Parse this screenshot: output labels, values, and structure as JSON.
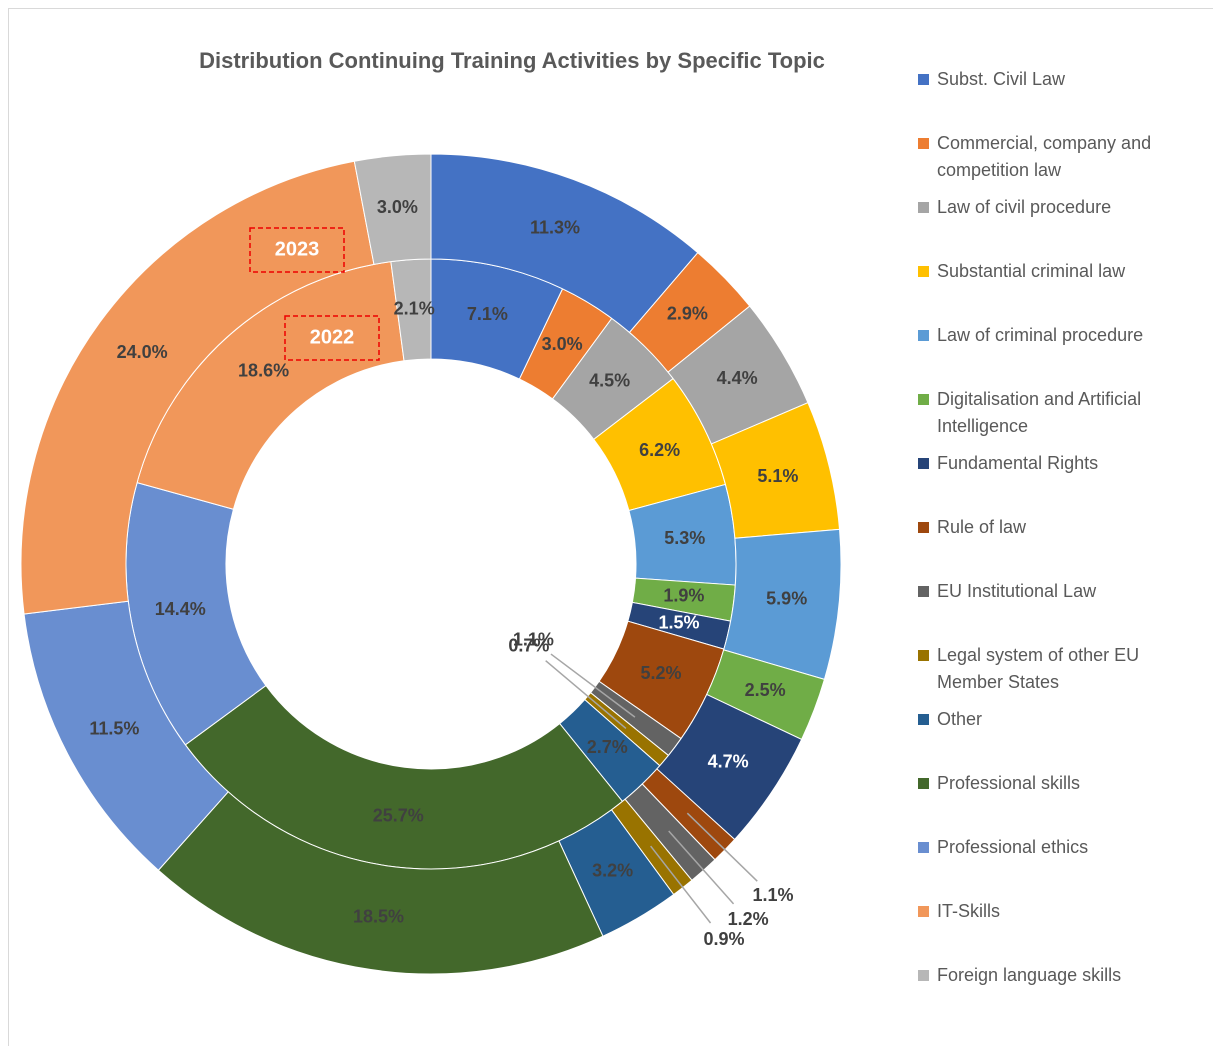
{
  "chart_data": {
    "type": "donut",
    "title": "Distribution Continuing Training Activities by Specific Topic",
    "categories": [
      "Subst. Civil Law",
      "Commercial, company and competition law",
      "Law of civil procedure",
      "Substantial criminal law",
      "Law of criminal procedure",
      "Digitalisation and Artificial Intelligence",
      "Fundamental Rights",
      "Rule of law",
      "EU Institutional Law",
      "Legal system of other EU Member States",
      "Other",
      "Professional skills",
      "Professional ethics",
      "IT-Skills",
      "Foreign language skills"
    ],
    "colors": [
      "#4472c4",
      "#ed7d31",
      "#a5a5a5",
      "#ffc000",
      "#5b9bd5",
      "#70ad47",
      "#264478",
      "#9e480e",
      "#636363",
      "#997300",
      "#255e91",
      "#43682b",
      "#698ed0",
      "#f1975a",
      "#b7b7b7"
    ],
    "legend": "right",
    "series": [
      {
        "name": "2022",
        "values": [
          7.1,
          3.0,
          4.5,
          6.2,
          5.3,
          1.9,
          1.5,
          5.2,
          1.1,
          0.7,
          2.7,
          25.7,
          14.4,
          18.6,
          2.1
        ],
        "value_labels": [
          "7.1%",
          "3.0%",
          "4.5%",
          "6.2%",
          "5.3%",
          "1.9%",
          "1.5%",
          "5.2%",
          "1.1%",
          "0.7%",
          "2.7%",
          "25.7%",
          "14.4%",
          "18.6%",
          "2.1%"
        ]
      },
      {
        "name": "2023",
        "values": [
          11.3,
          2.9,
          4.4,
          5.1,
          5.9,
          2.5,
          4.7,
          1.1,
          1.2,
          0.9,
          3.2,
          18.5,
          11.5,
          24.0,
          3.0
        ],
        "value_labels": [
          "11.3%",
          "2.9%",
          "4.4%",
          "5.1%",
          "5.9%",
          "2.5%",
          "4.7%",
          "1.1%",
          "1.2%",
          "0.9%",
          "3.2%",
          "18.5%",
          "11.5%",
          "24.0%",
          "3.0%"
        ]
      }
    ]
  }
}
